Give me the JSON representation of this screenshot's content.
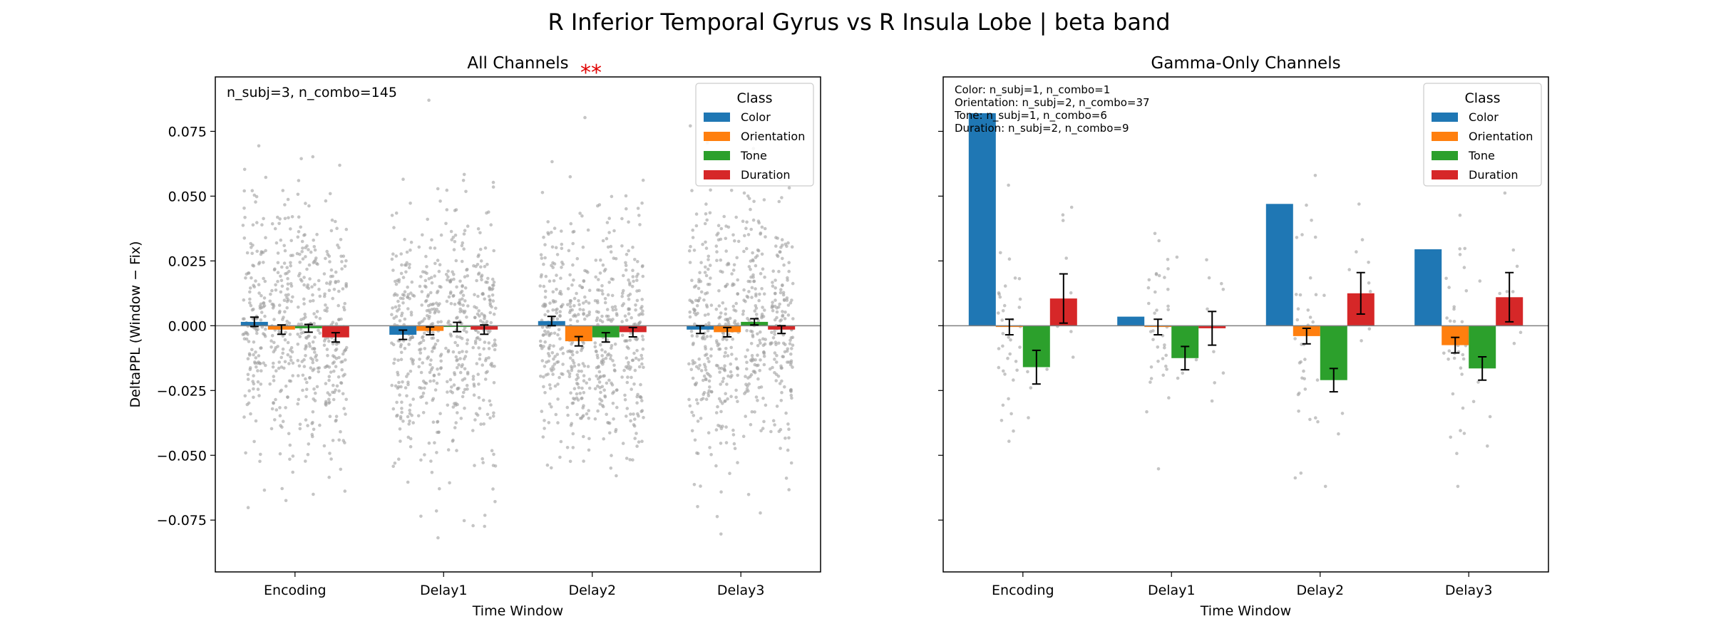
{
  "figure": {
    "suptitle": "R Inferior Temporal Gyrus vs R Insula Lobe  |  beta band"
  },
  "colors": {
    "Color": "#1f77b4",
    "Orientation": "#ff7f0e",
    "Tone": "#2ca02c",
    "Duration": "#d62728",
    "points": "#9e9e9e",
    "significance": "#e00000"
  },
  "chart_data": [
    {
      "type": "bar",
      "title": "All Channels",
      "significance": "**",
      "xlabel": "Time Window",
      "ylabel": "DeltaPPL (Window − Fix)",
      "categories": [
        "Encoding",
        "Delay1",
        "Delay2",
        "Delay3"
      ],
      "ylim": [
        -0.095,
        0.096
      ],
      "yticks": [
        -0.075,
        -0.05,
        -0.025,
        0.0,
        0.025,
        0.05,
        0.075
      ],
      "ytick_labels": [
        "−0.075",
        "−0.050",
        "−0.025",
        "0.000",
        "0.025",
        "0.050",
        "0.075"
      ],
      "annotations": [
        "n_subj=3, n_combo=145"
      ],
      "legend": {
        "title": "Class",
        "placement": "top-right"
      },
      "series": [
        {
          "name": "Color",
          "values": [
            0.0015,
            -0.0035,
            0.0018,
            -0.0015
          ],
          "errors": [
            0.0018,
            0.0018,
            0.0018,
            0.0015
          ]
        },
        {
          "name": "Orientation",
          "values": [
            -0.0015,
            -0.002,
            -0.006,
            -0.0025
          ],
          "errors": [
            0.0018,
            0.0015,
            0.0018,
            0.0018
          ]
        },
        {
          "name": "Tone",
          "values": [
            -0.001,
            -0.0005,
            -0.0045,
            0.0015
          ],
          "errors": [
            0.0015,
            0.0018,
            0.0018,
            0.0012
          ]
        },
        {
          "name": "Duration",
          "values": [
            -0.0045,
            -0.0015,
            -0.0025,
            -0.0015
          ],
          "errors": [
            0.0018,
            0.0018,
            0.0018,
            0.0015
          ]
        }
      ],
      "scatter": {
        "count_per_bar": 145,
        "std": 0.024,
        "range": [
          -0.086,
          0.087
        ]
      }
    },
    {
      "type": "bar",
      "title": "Gamma-Only Channels",
      "xlabel": "Time Window",
      "ylabel": "",
      "categories": [
        "Encoding",
        "Delay1",
        "Delay2",
        "Delay3"
      ],
      "ylim": [
        -0.095,
        0.096
      ],
      "yticks": [
        -0.075,
        -0.05,
        -0.025,
        0.0,
        0.025,
        0.05,
        0.075
      ],
      "ytick_labels": [
        "",
        "",
        "",
        "",
        "",
        "",
        ""
      ],
      "annotations": [
        "Color: n_subj=1, n_combo=1",
        "Orientation: n_subj=2, n_combo=37",
        "Tone: n_subj=1, n_combo=6",
        "Duration: n_subj=2, n_combo=9"
      ],
      "legend": {
        "title": "Class",
        "placement": "top-right"
      },
      "series": [
        {
          "name": "Color",
          "values": [
            0.082,
            0.0035,
            0.047,
            0.0295
          ],
          "errors": [
            null,
            null,
            null,
            null
          ]
        },
        {
          "name": "Orientation",
          "values": [
            -0.0005,
            -0.0005,
            -0.004,
            -0.0075
          ],
          "errors": [
            0.003,
            0.003,
            0.003,
            0.003
          ]
        },
        {
          "name": "Tone",
          "values": [
            -0.016,
            -0.0125,
            -0.021,
            -0.0165
          ],
          "errors": [
            0.0065,
            0.0045,
            0.0045,
            0.0045
          ]
        },
        {
          "name": "Duration",
          "values": [
            0.0105,
            -0.001,
            0.0125,
            0.011
          ],
          "errors": [
            0.0095,
            0.0065,
            0.008,
            0.0095
          ]
        }
      ],
      "scatter": {
        "count_per_bar": [
          0,
          37,
          6,
          9
        ],
        "std": 0.022,
        "range": [
          -0.062,
          0.058
        ]
      }
    }
  ]
}
